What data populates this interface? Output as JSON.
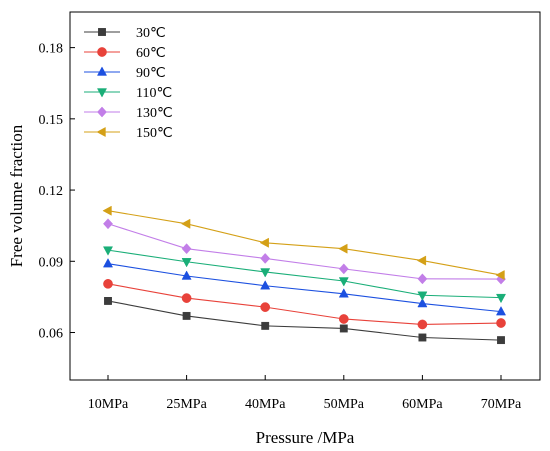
{
  "chart_data": {
    "type": "line",
    "xlabel": "Pressure /MPa",
    "ylabel": "Free volume fraction",
    "categories": [
      "10MPa",
      "25MPa",
      "40MPa",
      "50MPa",
      "60MPa",
      "70MPa"
    ],
    "ylim": [
      0.04,
      0.195
    ],
    "yticks": [
      "0.06",
      "0.09",
      "0.12",
      "0.15",
      "0.18"
    ],
    "grid": false,
    "legend_position": "top-left",
    "series": [
      {
        "name": "30℃",
        "color": "#3c3c3c",
        "marker": "square",
        "values": [
          0.0733,
          0.067,
          0.0628,
          0.0617,
          0.0579,
          0.0568
        ]
      },
      {
        "name": "60℃",
        "color": "#e8423a",
        "marker": "circle",
        "values": [
          0.0805,
          0.0745,
          0.0707,
          0.0657,
          0.0634,
          0.064
        ]
      },
      {
        "name": "90℃",
        "color": "#1c50e0",
        "marker": "triangle-up",
        "values": [
          0.089,
          0.0838,
          0.0797,
          0.0763,
          0.0722,
          0.0688
        ]
      },
      {
        "name": "110℃",
        "color": "#1aae78",
        "marker": "triangle-down",
        "values": [
          0.0947,
          0.0898,
          0.0855,
          0.0817,
          0.0757,
          0.0747
        ]
      },
      {
        "name": "130℃",
        "color": "#c27ee8",
        "marker": "diamond",
        "values": [
          0.1058,
          0.0953,
          0.0912,
          0.0868,
          0.0826,
          0.0825
        ]
      },
      {
        "name": "150℃",
        "color": "#d4a017",
        "marker": "triangle-left",
        "values": [
          0.1113,
          0.1058,
          0.0978,
          0.0953,
          0.0903,
          0.0842
        ]
      }
    ]
  }
}
